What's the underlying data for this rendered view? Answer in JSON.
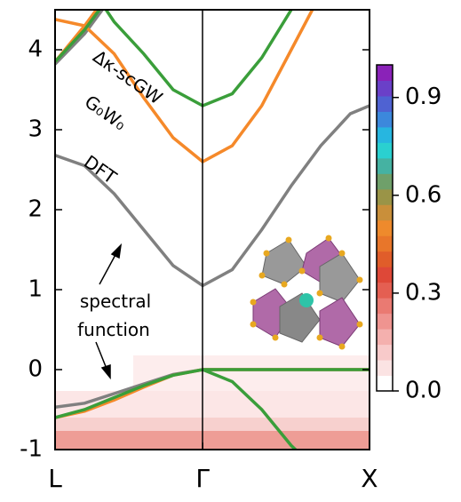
{
  "chart_data": {
    "type": "line",
    "x": [
      0,
      0.2,
      0.4,
      0.6,
      0.8,
      1.0,
      1.2,
      1.4,
      1.6,
      1.8,
      2.0,
      2.13
    ],
    "xlim": [
      0,
      2.13
    ],
    "xticks": [
      {
        "value": 0,
        "label": "L"
      },
      {
        "value": 1.0,
        "label": "Γ"
      },
      {
        "value": 2.13,
        "label": "X"
      }
    ],
    "ylim": [
      -1,
      4.5
    ],
    "yticks": [
      -1,
      0,
      1,
      2,
      3,
      4
    ],
    "series": [
      {
        "name": "DFT",
        "color": "#808080",
        "bands": [
          [
            2.68,
            2.55,
            2.2,
            1.75,
            1.3,
            1.05,
            1.25,
            1.75,
            2.3,
            2.8,
            3.2,
            3.3
          ],
          [
            3.82,
            4.2,
            4.7,
            null,
            null,
            null,
            null,
            null,
            null,
            null,
            null,
            null
          ],
          [
            -0.47,
            -0.42,
            -0.3,
            -0.18,
            -0.06,
            0,
            0,
            0,
            0,
            0,
            0,
            0
          ]
        ]
      },
      {
        "name": "G₀W₀",
        "color": "#f5892a",
        "bands": [
          [
            4.38,
            4.3,
            3.95,
            3.4,
            2.9,
            2.6,
            2.8,
            3.3,
            4.0,
            4.7,
            null,
            null
          ],
          [
            3.85,
            4.3,
            4.8,
            null,
            null,
            null,
            null,
            null,
            null,
            null,
            null,
            null
          ],
          [
            -0.6,
            -0.52,
            -0.38,
            -0.22,
            -0.07,
            0,
            0,
            0,
            0,
            0,
            0,
            0
          ]
        ]
      },
      {
        "name": "Δκ-scGW",
        "color": "#3a9e3a",
        "bands": [
          [
            null,
            4.9,
            4.35,
            3.95,
            3.5,
            3.3,
            3.45,
            3.9,
            4.5,
            null,
            null,
            null
          ],
          [
            3.85,
            4.25,
            4.75,
            null,
            null,
            null,
            null,
            null,
            null,
            null,
            null,
            null
          ],
          [
            -0.6,
            -0.5,
            -0.35,
            -0.2,
            -0.07,
            0,
            0,
            0,
            0,
            0,
            0,
            0
          ],
          [
            null,
            null,
            null,
            null,
            null,
            0,
            -0.15,
            -0.5,
            -0.95,
            -1.3,
            null,
            null
          ]
        ]
      }
    ],
    "annotation": "spectral function",
    "colorbar": {
      "lim": [
        0,
        1.0
      ],
      "ticks": [
        {
          "value": 0,
          "label": "0.0"
        },
        0.3,
        0.6,
        0.9
      ],
      "colors": [
        "#ffffff",
        "#fbe3e3",
        "#f8caca",
        "#f4b0ae",
        "#ef9490",
        "#ea7a72",
        "#e45f52",
        "#de4838",
        "#e05d2a",
        "#e8762a",
        "#ee8a2c",
        "#c98f3a",
        "#9a9447",
        "#6fa06a",
        "#45b2a2",
        "#2ad0d0",
        "#27b6e0",
        "#3c88dc",
        "#4f62d2",
        "#6a40c8",
        "#8a22b8"
      ]
    }
  }
}
